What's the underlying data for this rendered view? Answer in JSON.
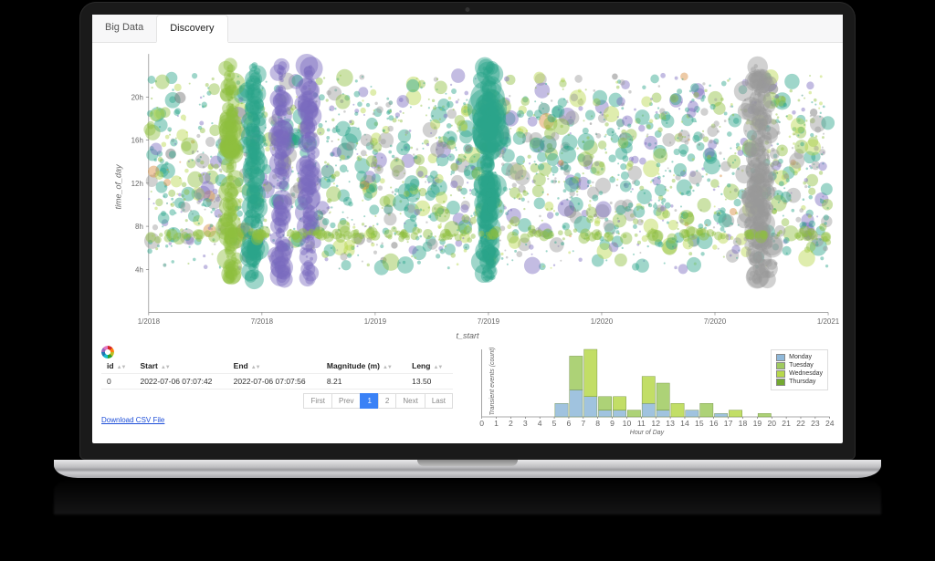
{
  "tabs": {
    "big_data": "Big Data",
    "discovery": "Discovery",
    "active": "discovery"
  },
  "scatter": {
    "type": "scatter",
    "ylabel": "time_of_day",
    "xlabel": "t_start",
    "y_ticks": [
      4,
      8,
      12,
      16,
      20
    ],
    "y_tick_labels": [
      "4h",
      "8h",
      "12h",
      "16h",
      "20h"
    ],
    "ylim": [
      0,
      24
    ],
    "x_ticks": [
      "1/2018",
      "7/2018",
      "1/2019",
      "7/2019",
      "1/2020",
      "7/2020",
      "1/2021"
    ],
    "xlim_idx": [
      0,
      6
    ],
    "background_color": "#ffffff",
    "axis_color": "#555555",
    "n_points": 2200,
    "seed": 20220706,
    "colors": {
      "teal": "#2aa38a",
      "teal_dark": "#1f7e6b",
      "green": "#8fbf3f",
      "lime": "#b7d84b",
      "purple": "#7a6bbf",
      "gray": "#9a9a9a",
      "gray_dark": "#6e6e6e",
      "orange": "#d68a3a"
    },
    "max_radius": 18,
    "min_radius": 1,
    "opacity": 0.45,
    "dense_x_bands": [
      {
        "center": 0.12,
        "width": 0.015,
        "color": "green",
        "n": 160
      },
      {
        "center": 0.155,
        "width": 0.015,
        "color": "teal",
        "n": 160
      },
      {
        "center": 0.195,
        "width": 0.012,
        "color": "purple",
        "n": 140
      },
      {
        "center": 0.235,
        "width": 0.012,
        "color": "purple",
        "n": 130
      },
      {
        "center": 0.5,
        "width": 0.02,
        "color": "teal",
        "n": 220
      },
      {
        "center": 0.9,
        "width": 0.035,
        "color": "gray",
        "n": 260
      }
    ],
    "horizontal_band": {
      "y_center": 7.2,
      "y_spread": 0.8,
      "color": "green",
      "n": 180
    }
  },
  "table": {
    "columns": [
      "id",
      "Start",
      "End",
      "Magnitude (m)",
      "Leng"
    ],
    "rows": [
      [
        "0",
        "2022-07-06 07:07:42",
        "2022-07-06 07:07:56",
        "8.21",
        "13.50"
      ]
    ]
  },
  "pager": {
    "first": "First",
    "prev": "Prev",
    "pages": [
      "1",
      "2"
    ],
    "next": "Next",
    "last": "Last",
    "active_page": "1"
  },
  "download_link": "Download CSV File",
  "hist": {
    "type": "grouped-bar",
    "ylabel": "Transient events (count)",
    "xlabel": "Hour of Day",
    "x_ticks": [
      0,
      1,
      2,
      3,
      4,
      5,
      6,
      7,
      8,
      9,
      10,
      11,
      12,
      13,
      14,
      15,
      16,
      17,
      18,
      19,
      20,
      21,
      22,
      23,
      24
    ],
    "ymax": 10,
    "bar_width": 0.9,
    "legend": [
      {
        "label": "Monday",
        "color": "#8fb8d9"
      },
      {
        "label": "Tuesday",
        "color": "#9fca5f"
      },
      {
        "label": "Wednesday",
        "color": "#b7d84b"
      },
      {
        "label": "Thursday",
        "color": "#74a931"
      }
    ],
    "stacks": {
      "5": {
        "Monday": 2
      },
      "6": {
        "Monday": 4,
        "Tuesday": 5
      },
      "7": {
        "Monday": 3,
        "Wednesday": 7
      },
      "8": {
        "Monday": 1,
        "Tuesday": 2
      },
      "9": {
        "Monday": 1,
        "Wednesday": 2
      },
      "10": {
        "Tuesday": 1
      },
      "11": {
        "Monday": 2,
        "Wednesday": 4
      },
      "12": {
        "Monday": 1,
        "Tuesday": 4
      },
      "13": {
        "Wednesday": 2
      },
      "14": {
        "Monday": 1
      },
      "15": {
        "Tuesday": 2
      },
      "16": {
        "Monday": 0.5
      },
      "17": {
        "Wednesday": 1
      },
      "19": {
        "Tuesday": 0.5
      }
    }
  }
}
